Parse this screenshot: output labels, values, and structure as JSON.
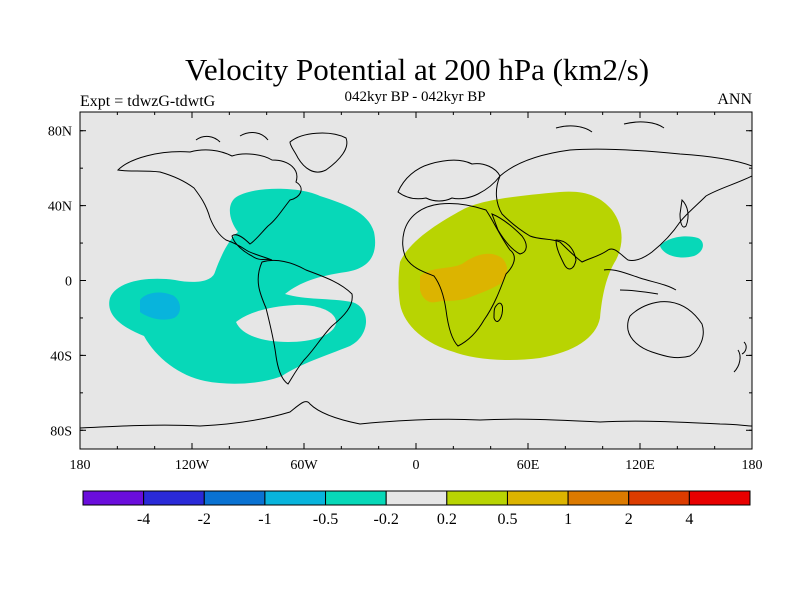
{
  "header": {
    "title": "Velocity Potential at 200 hPa (km2/s)",
    "subtitle": "042kyr BP - 042kyr BP",
    "left_label": "Expt = tdwzG-tdwtG",
    "right_label": "ANN"
  },
  "chart_data": {
    "type": "heatmap",
    "projection": "equidistant cylindrical",
    "xlim": [
      -180,
      180
    ],
    "ylim": [
      -90,
      90
    ],
    "lon_ticks": [
      {
        "value": -180,
        "label": "180"
      },
      {
        "value": -120,
        "label": "120W"
      },
      {
        "value": -60,
        "label": "60W"
      },
      {
        "value": 0,
        "label": "0"
      },
      {
        "value": 60,
        "label": "60E"
      },
      {
        "value": 120,
        "label": "120E"
      },
      {
        "value": 180,
        "label": "180"
      }
    ],
    "lat_ticks": [
      {
        "value": 80,
        "label": "80N"
      },
      {
        "value": 40,
        "label": "40N"
      },
      {
        "value": 0,
        "label": "0"
      },
      {
        "value": -40,
        "label": "40S"
      },
      {
        "value": -80,
        "label": "80S"
      }
    ],
    "background_color": "#e6e6e6",
    "colorbar": {
      "colors": [
        "#6a0ddb",
        "#2a2ad8",
        "#0a72d2",
        "#08b4dc",
        "#07d8b8",
        "#e6e6e6",
        "#b8d402",
        "#dcb400",
        "#dc7a00",
        "#dc3c00",
        "#e80000"
      ],
      "labels": [
        "-4",
        "-2",
        "-1",
        "-0.5",
        "-0.2",
        "0.2",
        "0.5",
        "1",
        "2",
        "4"
      ]
    },
    "regions": [
      {
        "name": "western-hemisphere-negative",
        "level": "-0.5 to -0.2",
        "color": "#07d8b8"
      },
      {
        "name": "eastern-pacific-negative-core",
        "level": "-1 to -0.5",
        "color": "#08b4dc"
      },
      {
        "name": "western-pacific-negative",
        "level": "-0.5 to -0.2",
        "color": "#07d8b8"
      },
      {
        "name": "africa-indian-positive",
        "level": "0.2 to 0.5",
        "color": "#b8d402"
      },
      {
        "name": "east-africa-positive-core",
        "level": "0.5 to 1",
        "color": "#dcb400"
      }
    ]
  }
}
